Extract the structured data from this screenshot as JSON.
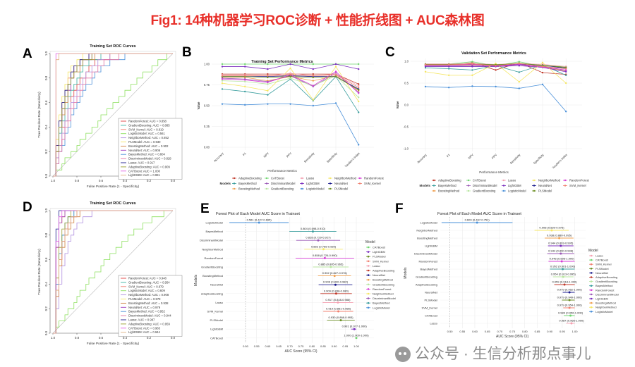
{
  "title": "Fig1: 14种机器学习ROC诊断 + 性能折线图 + AUC森林图",
  "watermark": "公众号 · 生信分析那点事儿",
  "palette": {
    "AdaptiveBoosting": "#c0392b",
    "BayesMethod": "#3a9e9e",
    "BoostingMethod": "#f0a050",
    "CATBoost": "#6fd66f",
    "DiscriminantModel": "#9b59b6",
    "GradientBoosting": "#b8e6a0",
    "Lasso": "#f4a0b0",
    "LightGBM": "#7b2fbe",
    "LogisticModel": "#4a90d9",
    "NeighborMethod": "#f5e663",
    "NeuralNet": "#1a1a8c",
    "PLSModel": "#6b8e23",
    "RandomForest": "#d63bd6",
    "SVM_Kernel": "#f08070"
  },
  "chart_data": [
    {
      "panel": "A",
      "type": "line",
      "kind": "roc",
      "title": "Training Set ROC Curves",
      "xlabel": "False Positive Rate (1 - Specificity)",
      "ylabel": "True Positive Rate (Sensitivity)",
      "xlim": [
        1.0,
        0.0
      ],
      "ylim": [
        0,
        1
      ],
      "xticks": [
        "1.0",
        "0.8",
        "0.6",
        "0.4",
        "0.2",
        "0.0"
      ],
      "yticks": [
        "0.0",
        "0.2",
        "0.4",
        "0.6",
        "0.8",
        "1.0"
      ],
      "legend_placement": "bottom-right",
      "series": [
        {
          "name": "RandomForest",
          "auc": 0.858,
          "label": "RandomForest: AUC = 0.858",
          "color": "#e04040"
        },
        {
          "name": "GradientBoosting",
          "auc": 0.885,
          "label": "GradientBoosting: AUC = 0.885",
          "color": "#3ab0a0"
        },
        {
          "name": "SVM_Kernel",
          "auc": 0.919,
          "label": "SVM_Kernel: AUC = 0.919",
          "color": "#f08070"
        },
        {
          "name": "LogisticModel",
          "auc": 0.561,
          "label": "LogisticModel: AUC = 0.561",
          "color": "#8ee060"
        },
        {
          "name": "NeighborMethod",
          "auc": 0.852,
          "label": "NeighborMethod: AUC = 0.852",
          "color": "#b090e0"
        },
        {
          "name": "PLSModel",
          "auc": 0.93,
          "label": "PLSModel: AUC = 0.930",
          "color": "#f5e663"
        },
        {
          "name": "BoostingMethod",
          "auc": 0.902,
          "label": "BoostingMethod: AUC = 0.902",
          "color": "#d08040"
        },
        {
          "name": "NeuralNet",
          "auc": 0.906,
          "label": "NeuralNet: AUC = 0.906",
          "color": "#a040c0"
        },
        {
          "name": "BayesMethod",
          "auc": 0.804,
          "label": "BayesMethod: AUC = 0.804",
          "color": "#4a90d9"
        },
        {
          "name": "DiscriminantModel",
          "auc": 0.828,
          "label": "DiscriminantModel: AUC = 0.828",
          "color": "#e070a0"
        },
        {
          "name": "Lasso",
          "auc": 0.917,
          "label": "Lasso: AUC = 0.917",
          "color": "#1a1a8c"
        },
        {
          "name": "AdaptiveBoosting",
          "auc": 0.909,
          "label": "AdaptiveBoosting: AUC = 0.909",
          "color": "#9aa030"
        },
        {
          "name": "CATBoost",
          "auc": 1.0,
          "label": "CATBoost: AUC = 1.000",
          "color": "#e060e0"
        },
        {
          "name": "LightGBM",
          "auc": 0.991,
          "label": "LightGBM: AUC = 0.991",
          "color": "#e0b080"
        }
      ]
    },
    {
      "panel": "B",
      "type": "line",
      "title": "Training Set Performance Metrics",
      "xlabel": "Performance Metrics",
      "ylabel": "Value",
      "legend_title": "Models",
      "legend_placement": "bottom",
      "categories": [
        "Accuracy",
        "F1",
        "NPV",
        "PPV",
        "Sensitivity",
        "Specificity",
        "Youden's Index"
      ],
      "ylim": [
        0,
        1
      ],
      "yticks": [
        "0.00",
        "0.25",
        "0.50",
        "0.75",
        "1.00"
      ],
      "ytick_values": [
        0,
        0.25,
        0.5,
        0.75,
        1
      ],
      "series": [
        {
          "name": "AdaptiveBoosting",
          "values": [
            0.88,
            0.88,
            0.88,
            0.88,
            0.88,
            0.88,
            0.76
          ]
        },
        {
          "name": "BayesMethod",
          "values": [
            0.7,
            0.67,
            0.63,
            0.82,
            0.56,
            0.85,
            0.42
          ]
        },
        {
          "name": "BoostingMethod",
          "values": [
            0.84,
            0.84,
            0.8,
            0.85,
            0.8,
            0.86,
            0.68
          ]
        },
        {
          "name": "CATBoost",
          "values": [
            1.0,
            1.0,
            1.0,
            1.0,
            1.0,
            1.0,
            1.0
          ]
        },
        {
          "name": "DiscriminantModel",
          "values": [
            0.83,
            0.82,
            0.79,
            0.86,
            0.73,
            0.89,
            0.66
          ]
        },
        {
          "name": "GradientBoosting",
          "values": [
            0.8,
            0.79,
            0.76,
            0.83,
            0.74,
            0.86,
            0.6
          ]
        },
        {
          "name": "Lasso",
          "values": [
            0.87,
            0.87,
            0.86,
            0.89,
            0.86,
            0.88,
            0.74
          ]
        },
        {
          "name": "LightGBM",
          "values": [
            0.97,
            0.97,
            0.94,
            1.0,
            0.94,
            1.0,
            0.94
          ]
        },
        {
          "name": "LogisticModel",
          "values": [
            0.52,
            0.51,
            0.52,
            0.52,
            0.5,
            0.53,
            0.03
          ]
        },
        {
          "name": "NeighborMethod",
          "values": [
            0.77,
            0.73,
            0.68,
            0.95,
            0.57,
            0.97,
            0.55
          ]
        },
        {
          "name": "NeuralNet",
          "values": [
            0.85,
            0.85,
            0.85,
            0.86,
            0.85,
            0.85,
            0.7
          ]
        },
        {
          "name": "PLSModel",
          "values": [
            0.85,
            0.85,
            0.84,
            0.85,
            0.84,
            0.85,
            0.69
          ]
        },
        {
          "name": "RandomForest",
          "values": [
            0.82,
            0.81,
            0.78,
            0.87,
            0.74,
            0.91,
            0.65
          ]
        },
        {
          "name": "SVM_Kernel",
          "values": [
            0.86,
            0.86,
            0.86,
            0.87,
            0.86,
            0.87,
            0.72
          ]
        }
      ]
    },
    {
      "panel": "C",
      "type": "line",
      "title": "Validation Set Performance Metrics",
      "xlabel": "Performance Metrics",
      "ylabel": "Value",
      "legend_title": "Models",
      "legend_placement": "bottom",
      "categories": [
        "Accuracy",
        "F1",
        "NPV",
        "PPV",
        "Sensitivity",
        "Specificity",
        "Youden's Index"
      ],
      "ylim": [
        -1,
        1
      ],
      "yticks": [
        "-1.0",
        "-0.5",
        "0.0",
        "0.5",
        "1.0"
      ],
      "ytick_values": [
        -1,
        -0.5,
        0,
        0.5,
        1
      ],
      "series": [
        {
          "name": "AdaptiveBoosting",
          "values": [
            0.9,
            0.9,
            0.97,
            0.8,
            0.97,
            0.74,
            0.7
          ]
        },
        {
          "name": "BayesMethod",
          "values": [
            0.85,
            0.83,
            0.8,
            0.9,
            0.75,
            0.92,
            0.68
          ]
        },
        {
          "name": "BoostingMethod",
          "values": [
            0.9,
            0.9,
            0.92,
            0.88,
            0.93,
            0.86,
            0.78
          ]
        },
        {
          "name": "CATBoost",
          "values": [
            0.94,
            0.94,
            0.99,
            0.9,
            0.99,
            0.89,
            0.88
          ]
        },
        {
          "name": "DiscriminantModel",
          "values": [
            0.9,
            0.9,
            0.9,
            0.9,
            0.9,
            0.89,
            0.79
          ]
        },
        {
          "name": "GradientBoosting",
          "values": [
            0.93,
            0.93,
            0.95,
            0.91,
            0.96,
            0.9,
            0.86
          ]
        },
        {
          "name": "Lasso",
          "values": [
            0.94,
            0.94,
            0.95,
            0.93,
            0.95,
            0.93,
            0.88
          ]
        },
        {
          "name": "LightGBM",
          "values": [
            0.88,
            0.88,
            0.88,
            0.88,
            0.9,
            0.86,
            0.76
          ]
        },
        {
          "name": "LogisticModel",
          "values": [
            0.42,
            0.4,
            0.43,
            0.42,
            0.38,
            0.47,
            -0.15
          ]
        },
        {
          "name": "NeighborMethod",
          "values": [
            0.76,
            0.68,
            0.68,
            0.95,
            0.53,
            0.97,
            0.5
          ]
        },
        {
          "name": "NeuralNet",
          "values": [
            0.92,
            0.92,
            0.93,
            0.91,
            0.93,
            0.91,
            0.84
          ]
        },
        {
          "name": "PLSModel",
          "values": [
            0.93,
            0.93,
            0.94,
            0.92,
            0.95,
            0.91,
            0.86
          ]
        },
        {
          "name": "RandomForest",
          "values": [
            0.91,
            0.91,
            0.93,
            0.89,
            0.93,
            0.87,
            0.8
          ]
        },
        {
          "name": "SVM_Kernel",
          "values": [
            0.92,
            0.92,
            0.94,
            0.9,
            0.95,
            0.88,
            0.83
          ]
        }
      ]
    },
    {
      "panel": "D",
      "type": "line",
      "kind": "roc",
      "title": "Training Set ROC Curves",
      "xlabel": "False Positive Rate (1 - Specificity)",
      "ylabel": "True Positive Rate (Sensitivity)",
      "xlim": [
        1.0,
        0.0
      ],
      "ylim": [
        0,
        1
      ],
      "xticks": [
        "1.0",
        "0.8",
        "0.6",
        "0.4",
        "0.2",
        "0.0"
      ],
      "yticks": [
        "0.0",
        "0.2",
        "0.4",
        "0.6",
        "0.8",
        "1.0"
      ],
      "legend_placement": "bottom-right",
      "series": [
        {
          "name": "RandomForest",
          "auc": 0.948,
          "label": "RandomForest: AUC = 0.948",
          "color": "#e04040"
        },
        {
          "name": "GradientBoosting",
          "auc": 0.954,
          "label": "GradientBoosting: AUC = 0.954",
          "color": "#3ab0a0"
        },
        {
          "name": "SVM_Kernel",
          "auc": 0.979,
          "label": "SVM_Kernel: AUC = 0.979",
          "color": "#f08070"
        },
        {
          "name": "LogisticModel",
          "auc": 0.609,
          "label": "LogisticModel: AUC = 0.609",
          "color": "#8ee060"
        },
        {
          "name": "NeighborMethod",
          "auc": 0.908,
          "label": "NeighborMethod: AUC = 0.908",
          "color": "#b090e0"
        },
        {
          "name": "PLSModel",
          "auc": 0.979,
          "label": "PLSModel: AUC = 0.979",
          "color": "#f5e663"
        },
        {
          "name": "BoostingMethod",
          "auc": 0.938,
          "label": "BoostingMethod: AUC = 0.938",
          "color": "#d08040"
        },
        {
          "name": "NeuralNet",
          "auc": 0.979,
          "label": "NeuralNet: AUC = 0.979",
          "color": "#a040c0"
        },
        {
          "name": "BayesMethod",
          "auc": 0.952,
          "label": "BayesMethod: AUC = 0.952",
          "color": "#4a90d9"
        },
        {
          "name": "DiscriminantModel",
          "auc": 0.944,
          "label": "DiscriminantModel: AUC = 0.944",
          "color": "#e070a0"
        },
        {
          "name": "Lasso",
          "auc": 0.987,
          "label": "Lasso: AUC = 0.987",
          "color": "#1a1a8c"
        },
        {
          "name": "AdaptiveBoosting",
          "auc": 0.959,
          "label": "AdaptiveBoosting: AUC = 0.959",
          "color": "#9aa030"
        },
        {
          "name": "CATBoost",
          "auc": 0.983,
          "label": "CATBoost: AUC = 0.983",
          "color": "#e060e0"
        },
        {
          "name": "LightGBM",
          "auc": 0.944,
          "label": "LightGBM: AUC = 0.944",
          "color": "#e0b080"
        }
      ]
    },
    {
      "panel": "E",
      "type": "scatter",
      "kind": "forest",
      "title": "Forest Plot of Each Model AUC Score in Trainset",
      "xlabel": "AUC Score (95% CI)",
      "ylabel": "Models",
      "legend_title": "Model",
      "legend_placement": "right",
      "xticks": [
        "0.50",
        "0.55",
        "0.60",
        "0.65",
        "0.70",
        "0.75",
        "0.80",
        "0.85",
        "0.90",
        "0.95",
        "1.00"
      ],
      "xtick_values": [
        0.5,
        0.55,
        0.6,
        0.65,
        0.7,
        0.75,
        0.8,
        0.85,
        0.9,
        0.95,
        1.0
      ],
      "rows": [
        {
          "name": "LogisticModel",
          "auc": 0.561,
          "lo": 0.427,
          "hi": 0.695,
          "label": "0.561 (0.427-0.695)"
        },
        {
          "name": "BayesMethod",
          "auc": 0.804,
          "lo": 0.698,
          "hi": 0.91,
          "label": "0.804 (0.698-0.910)"
        },
        {
          "name": "DiscriminantModel",
          "auc": 0.828,
          "lo": 0.729,
          "hi": 0.927,
          "label": "0.828 (0.729-0.927)"
        },
        {
          "name": "NeighborMethod",
          "auc": 0.852,
          "lo": 0.765,
          "hi": 0.939,
          "label": "0.852 (0.765-0.939)"
        },
        {
          "name": "RandomForest",
          "auc": 0.858,
          "lo": 0.726,
          "hi": 0.99,
          "label": "0.858 (0.726-0.990)"
        },
        {
          "name": "GradientBoosting",
          "auc": 0.885,
          "lo": 0.805,
          "hi": 0.965,
          "label": "0.885 (0.805-0.965)"
        },
        {
          "name": "BoostingMethod",
          "auc": 0.902,
          "lo": 0.827,
          "hi": 0.976,
          "label": "0.902 (0.827-0.976)"
        },
        {
          "name": "NeuralNet",
          "auc": 0.906,
          "lo": 0.83,
          "hi": 0.982,
          "label": "0.906 (0.830-0.982)"
        },
        {
          "name": "AdaptiveBoosting",
          "auc": 0.909,
          "lo": 0.838,
          "hi": 0.98,
          "label": "0.909 (0.838-0.980)"
        },
        {
          "name": "Lasso",
          "auc": 0.917,
          "lo": 0.848,
          "hi": 0.986,
          "label": "0.917 (0.848-0.986)"
        },
        {
          "name": "SVM_Kernel",
          "auc": 0.919,
          "lo": 0.851,
          "hi": 0.986,
          "label": "0.919 (0.851-0.986)"
        },
        {
          "name": "PLSModel",
          "auc": 0.93,
          "lo": 0.868,
          "hi": 0.993,
          "label": "0.930 (0.868-0.993)"
        },
        {
          "name": "LightGBM",
          "auc": 0.991,
          "lo": 0.977,
          "hi": 1.0,
          "label": "0.991 (0.977-1.000)"
        },
        {
          "name": "CATBoost",
          "auc": 1.0,
          "lo": 1.0,
          "hi": 1.0,
          "label": "1.000 (1.000-1.000)"
        }
      ]
    },
    {
      "panel": "F",
      "type": "scatter",
      "kind": "forest",
      "title": "Forest Plot of Each Model AUC Score in Trainset",
      "xlabel": "AUC Score (95% CI)",
      "ylabel": "Models",
      "legend_title": "Model",
      "legend_placement": "right",
      "xticks": [
        "0.50",
        "0.55",
        "0.60",
        "0.65",
        "0.70",
        "0.75",
        "0.80",
        "0.85",
        "0.90",
        "0.95",
        "1.00"
      ],
      "xtick_values": [
        0.5,
        0.55,
        0.6,
        0.65,
        0.7,
        0.75,
        0.8,
        0.85,
        0.9,
        0.95,
        1.0
      ],
      "rows": [
        {
          "name": "LogisticModel",
          "auc": 0.609,
          "lo": 0.467,
          "hi": 0.751,
          "label": "0.609 (0.467-0.751)"
        },
        {
          "name": "NeighborMethod",
          "auc": 0.908,
          "lo": 0.839,
          "hi": 0.976,
          "label": "0.908 (0.839-0.976)"
        },
        {
          "name": "BoostingMethod",
          "auc": 0.938,
          "lo": 0.88,
          "hi": 0.995,
          "label": "0.938 (0.880-0.995)"
        },
        {
          "name": "LightGBM",
          "auc": 0.944,
          "lo": 0.893,
          "hi": 0.995,
          "label": "0.944 (0.893-0.995)"
        },
        {
          "name": "DiscriminantModel",
          "auc": 0.944,
          "lo": 0.89,
          "hi": 0.998,
          "label": "0.944 (0.890-0.998)"
        },
        {
          "name": "RandomForest",
          "auc": 0.948,
          "lo": 0.895,
          "hi": 1.0,
          "label": "0.948 (0.895-1.000)"
        },
        {
          "name": "BayesMethod",
          "auc": 0.952,
          "lo": 0.901,
          "hi": 1.0,
          "label": "0.952 (0.901-1.000)"
        },
        {
          "name": "GradientBoosting",
          "auc": 0.954,
          "lo": 0.913,
          "hi": 0.995,
          "label": "0.954 (0.913-0.995)"
        },
        {
          "name": "AdaptiveBoosting",
          "auc": 0.959,
          "lo": 0.918,
          "hi": 1.0,
          "label": "0.959 (0.918-1.000)"
        },
        {
          "name": "NeuralNet",
          "auc": 0.979,
          "lo": 0.952,
          "hi": 1.0,
          "label": "0.979 (0.952-1.000)"
        },
        {
          "name": "PLSModel",
          "auc": 0.979,
          "lo": 0.949,
          "hi": 1.0,
          "label": "0.979 (0.949-1.000)"
        },
        {
          "name": "SVM_Kernel",
          "auc": 0.979,
          "lo": 0.954,
          "hi": 1.0,
          "label": "0.979 (0.954-1.000)"
        },
        {
          "name": "CATBoost",
          "auc": 0.983,
          "lo": 0.956,
          "hi": 1.0,
          "label": "0.983 (0.956-1.000)"
        },
        {
          "name": "Lasso",
          "auc": 0.987,
          "lo": 0.966,
          "hi": 1.0,
          "label": "0.987 (0.966-1.000)"
        }
      ]
    }
  ]
}
